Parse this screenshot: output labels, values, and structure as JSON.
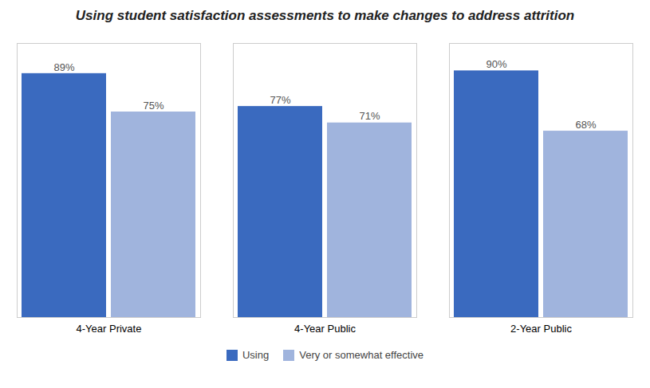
{
  "chart_data": {
    "type": "bar",
    "title": "Using student satisfaction assessments to make changes to address attrition",
    "categories": [
      "4-Year Private",
      "4-Year Public",
      "2-Year Public"
    ],
    "series": [
      {
        "name": "Using",
        "color": "#3a6abf",
        "values": [
          89,
          77,
          90
        ],
        "value_labels": [
          "89%",
          "77%",
          "90%"
        ]
      },
      {
        "name": "Very or somewhat effective",
        "color": "#a0b4dd",
        "values": [
          75,
          71,
          68
        ],
        "value_labels": [
          "75%",
          "71%",
          "68%"
        ]
      }
    ],
    "ylim": [
      0,
      100
    ],
    "yticks": [],
    "grid": false,
    "legend": "bottom",
    "data_labels": true,
    "tick_labels": "x"
  }
}
